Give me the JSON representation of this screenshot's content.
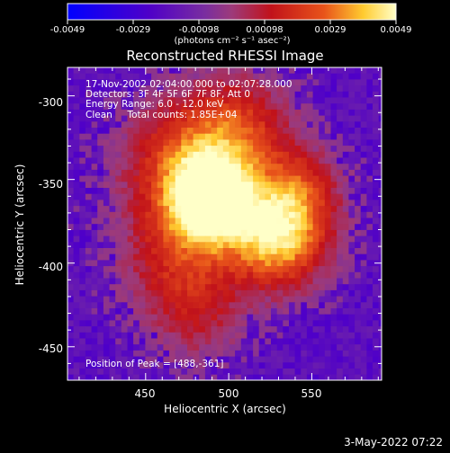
{
  "colorbar": {
    "ticks": [
      "-0.0049",
      "-0.0029",
      "-0.00098",
      "0.00098",
      "0.0029",
      "0.0049"
    ],
    "unit_label": "(photons cm⁻² s⁻¹ asec⁻²)",
    "range": [
      -0.0049,
      0.0049
    ],
    "colors": [
      "#0000ff",
      "#4f00c8",
      "#7a2e9f",
      "#9d3a7a",
      "#c1121a",
      "#e8531a",
      "#ffcb30",
      "#ffffc8"
    ]
  },
  "chart_data": {
    "type": "heatmap",
    "title": "Reconstructed RHESSI Image",
    "xlabel": "Heliocentric X (arcsec)",
    "ylabel": "Heliocentric Y (arcsec)",
    "xlim": [
      403,
      592
    ],
    "ylim": [
      -470,
      -283
    ],
    "xticks": [
      "450",
      "500",
      "550"
    ],
    "yticks": [
      "-300",
      "-350",
      "-400",
      "-450"
    ],
    "xtick_values": [
      450,
      500,
      550
    ],
    "ytick_values": [
      -300,
      -350,
      -400,
      -450
    ],
    "annotations": [
      "17-Nov-2002 02:04:00.000 to 02:07:28.000",
      "Detectors: 3F 4F 5F 6F 7F 8F, Att 0",
      "Energy Range: 6.0 - 12.0 keV",
      "Clean     Total counts: 1.85E+04"
    ],
    "peak_label": "Position of Peak = [488,-361]",
    "peak": [
      488,
      -361
    ]
  },
  "footer": {
    "date": "3-May-2022 07:22"
  }
}
